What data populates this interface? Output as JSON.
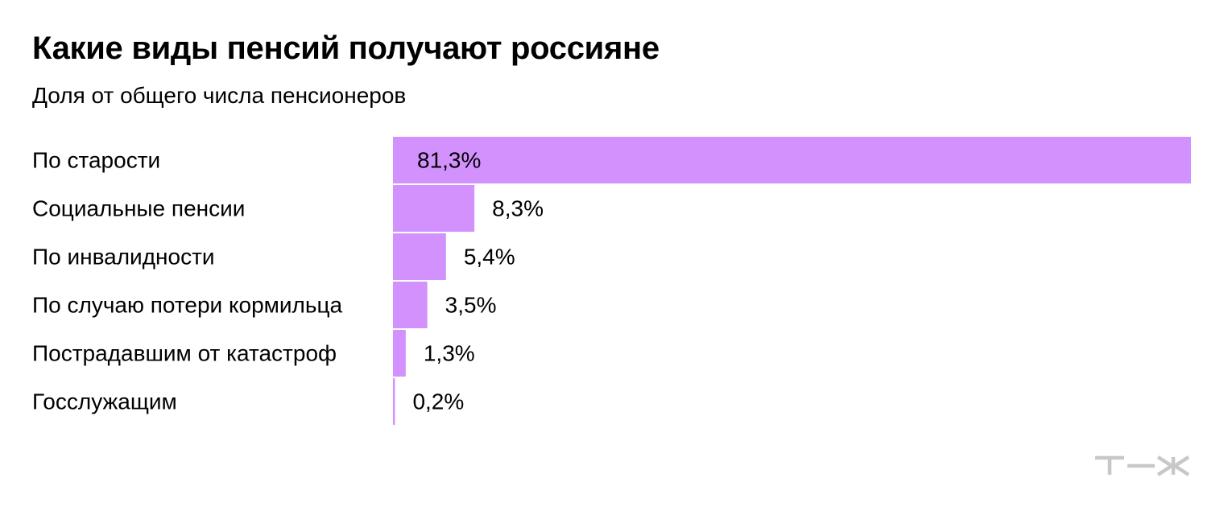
{
  "chart_data": {
    "type": "bar",
    "orientation": "horizontal",
    "title": "Какие виды пенсий получают россияне",
    "subtitle": "Доля от общего числа пенсионеров",
    "categories": [
      "По старости",
      "Социальные пенсии",
      "По инвалидности",
      "По случаю потери кормильца",
      "Пострадавшим от катастроф",
      "Госслужащим"
    ],
    "values": [
      81.3,
      8.3,
      5.4,
      3.5,
      1.3,
      0.2
    ],
    "value_labels": [
      "81,3%",
      "8,3%",
      "5,4%",
      "3,5%",
      "1,3%",
      "0,2%"
    ],
    "xlim": [
      0,
      81.3
    ],
    "grid": false,
    "legend": "none",
    "bar_color": "#d391fe"
  },
  "colors": {
    "bar": "#d391fe",
    "text": "#000000",
    "logo": "#c8c8c8"
  }
}
